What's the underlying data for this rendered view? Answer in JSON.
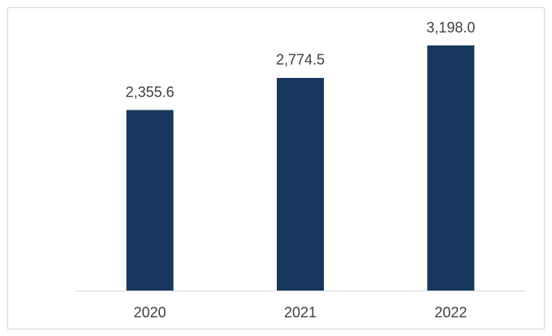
{
  "chart_data": {
    "type": "bar",
    "categories": [
      "2020",
      "2021",
      "2022"
    ],
    "values": [
      2355.6,
      2774.5,
      3198.0
    ],
    "value_labels": [
      "2,355.6",
      "2,774.5",
      "3,198.0"
    ],
    "color": "#17375e"
  }
}
